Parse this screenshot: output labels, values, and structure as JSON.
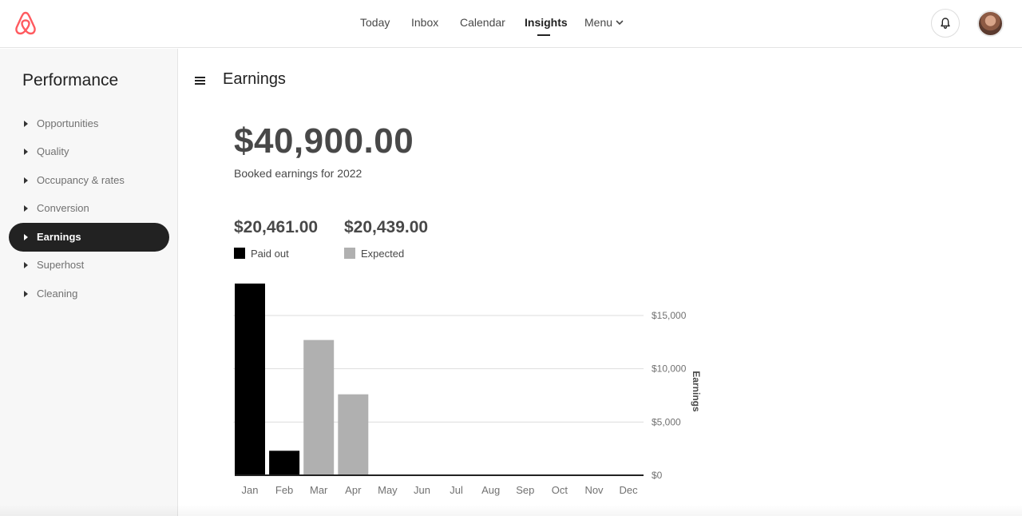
{
  "header": {
    "nav": [
      {
        "label": "Today",
        "active": false
      },
      {
        "label": "Inbox",
        "active": false
      },
      {
        "label": "Calendar",
        "active": false
      },
      {
        "label": "Insights",
        "active": true
      },
      {
        "label": "Menu",
        "active": false
      }
    ],
    "icons": {
      "logo": "airbnb-logo-icon",
      "menu_chevron": "chevron-down-icon",
      "notifications": "bell-icon",
      "profile": "avatar"
    }
  },
  "sidebar": {
    "title": "Performance",
    "items": [
      {
        "label": "Opportunities",
        "active": false
      },
      {
        "label": "Quality",
        "active": false
      },
      {
        "label": "Occupancy & rates",
        "active": false
      },
      {
        "label": "Conversion",
        "active": false
      },
      {
        "label": "Earnings",
        "active": true
      },
      {
        "label": "Superhost",
        "active": false
      },
      {
        "label": "Cleaning",
        "active": false
      }
    ]
  },
  "main": {
    "menu_icon": "hamburger-icon",
    "title": "Earnings",
    "total": "$40,900.00",
    "total_caption": "Booked earnings for 2022",
    "stats": [
      {
        "value": "$20,461.00",
        "label": "Paid out",
        "color": "#000000"
      },
      {
        "value": "$20,439.00",
        "label": "Expected",
        "color": "#b0b0b0"
      }
    ]
  },
  "chart_data": {
    "type": "bar",
    "categories": [
      "Jan",
      "Feb",
      "Mar",
      "Apr",
      "May",
      "Jun",
      "Jul",
      "Aug",
      "Sep",
      "Oct",
      "Nov",
      "Dec"
    ],
    "series": [
      {
        "name": "Paid out",
        "color": "#000000",
        "values": [
          18000,
          2300,
          0,
          0,
          0,
          0,
          0,
          0,
          0,
          0,
          0,
          0
        ]
      },
      {
        "name": "Expected",
        "color": "#b0b0b0",
        "values": [
          0,
          0,
          12700,
          7600,
          0,
          0,
          0,
          0,
          0,
          0,
          0,
          0
        ]
      }
    ],
    "ylabel": "Earnings",
    "y_ticks": [
      0,
      5000,
      10000,
      15000
    ],
    "y_tick_labels": [
      "$0",
      "$5,000",
      "$10,000",
      "$15,000"
    ],
    "ylim": [
      0,
      18000
    ],
    "grid": true,
    "y_axis_position": "right"
  }
}
